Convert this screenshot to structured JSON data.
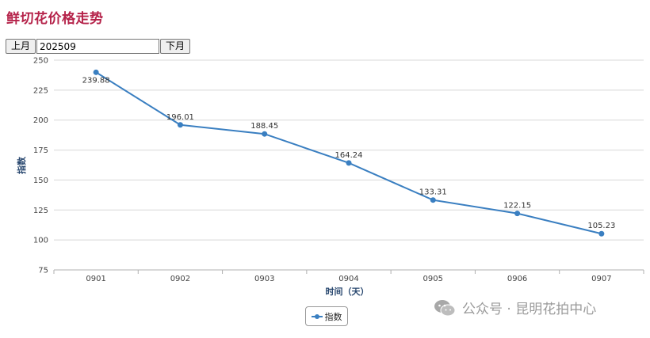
{
  "page": {
    "title": "鲜切花价格走势"
  },
  "nav": {
    "prev_label": "上月",
    "month_value": "202509",
    "next_label": "下月"
  },
  "colors": {
    "title": "#b5234a",
    "series": "#3a7fc1",
    "grid": "#d8d8d8"
  },
  "chart_data": {
    "type": "line",
    "categories": [
      "0901",
      "0902",
      "0903",
      "0904",
      "0905",
      "0906",
      "0907"
    ],
    "series": [
      {
        "name": "指数",
        "values": [
          239.88,
          196.01,
          188.45,
          164.24,
          133.31,
          122.15,
          105.23
        ]
      }
    ],
    "xlabel": "时间（天）",
    "ylabel": "指数",
    "ylim": [
      75,
      250
    ],
    "yticks": [
      75,
      100,
      125,
      150,
      175,
      200,
      225,
      250
    ],
    "grid": true,
    "legend": "bottom-center"
  },
  "legend": {
    "label": "指数",
    "icon": "line-marker-icon"
  },
  "watermark": {
    "text": "公众号 · 昆明花拍中心",
    "icon": "wechat-icon"
  }
}
